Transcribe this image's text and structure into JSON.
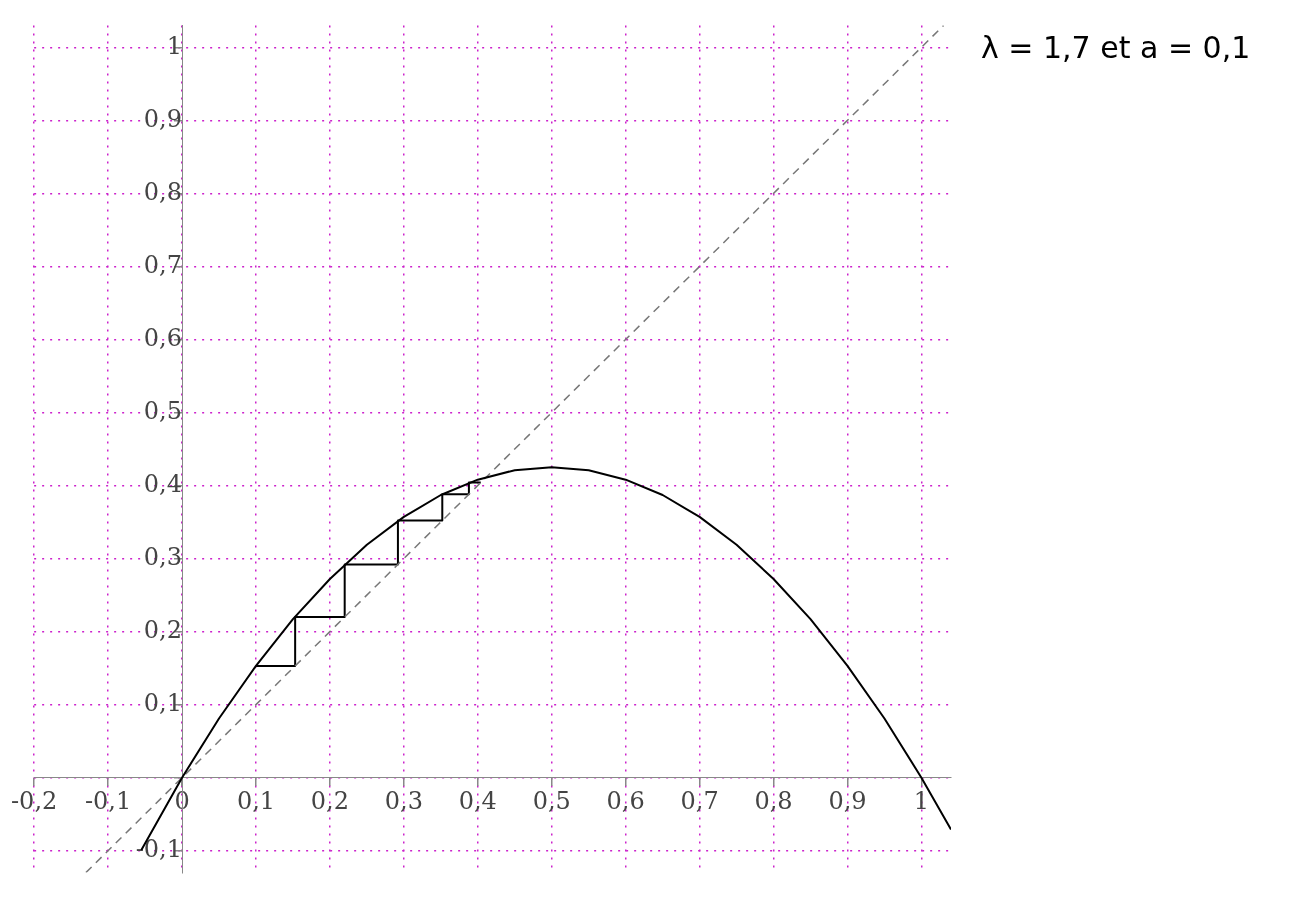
{
  "chart_data": {
    "type": "line",
    "annotations": [
      "λ = 1,7 et a = 0,1"
    ],
    "xlim": [
      -0.2,
      1.04
    ],
    "ylim": [
      -0.13,
      1.03
    ],
    "xticks": [
      {
        "value": -0.2,
        "label": "-0,2"
      },
      {
        "value": -0.1,
        "label": "-0,1"
      },
      {
        "value": 0,
        "label": "0"
      },
      {
        "value": 0.1,
        "label": "0,1"
      },
      {
        "value": 0.2,
        "label": "0,2"
      },
      {
        "value": 0.3,
        "label": "0,3"
      },
      {
        "value": 0.4,
        "label": "0,4"
      },
      {
        "value": 0.5,
        "label": "0,5"
      },
      {
        "value": 0.6,
        "label": "0,6"
      },
      {
        "value": 0.7,
        "label": "0,7"
      },
      {
        "value": 0.8,
        "label": "0,8"
      },
      {
        "value": 0.9,
        "label": "0,9"
      },
      1
    ],
    "yticks": [
      {
        "value": -0.1,
        "label": "-0,1"
      },
      {
        "value": 0,
        "label": null
      },
      {
        "value": 0.1,
        "label": "0,1"
      },
      {
        "value": 0.2,
        "label": "0,2"
      },
      {
        "value": 0.3,
        "label": "0,3"
      },
      {
        "value": 0.4,
        "label": "0,4"
      },
      {
        "value": 0.5,
        "label": "0,5"
      },
      {
        "value": 0.6,
        "label": "0,6"
      },
      {
        "value": 0.7,
        "label": "0,7"
      },
      {
        "value": 0.8,
        "label": "0,8"
      },
      {
        "value": 0.9,
        "label": "0,9"
      },
      1
    ],
    "grid": true,
    "legend": false,
    "marker": "none",
    "series": [
      {
        "color": "#000000",
        "line_style": "solid",
        "x": [
          -0.055,
          0,
          0.05,
          0.1,
          0.15,
          0.2,
          0.25,
          0.3,
          0.35,
          0.4,
          0.45,
          0.5,
          0.55,
          0.6,
          0.65,
          0.7,
          0.75,
          0.8,
          0.85,
          0.9,
          0.95,
          1,
          1.04
        ],
        "values": [
          -0.099,
          0,
          0.081,
          0.153,
          0.217,
          0.272,
          0.319,
          0.357,
          0.387,
          0.408,
          0.421,
          0.425,
          0.421,
          0.408,
          0.387,
          0.357,
          0.319,
          0.272,
          0.217,
          0.153,
          0.081,
          0,
          -0.071
        ]
      },
      {
        "color": "#777777",
        "line_style": "dashed",
        "x": [
          -0.13,
          1.03
        ],
        "values": [
          -0.13,
          1.03
        ]
      },
      {
        "color": "#000000",
        "line_style": "solid",
        "x": [
          0.1,
          0.153,
          0.153,
          0.22,
          0.22,
          0.292,
          0.292,
          0.352,
          0.352,
          0.388,
          0.388,
          0.404
        ],
        "values": [
          0.153,
          0.153,
          0.22,
          0.22,
          0.292,
          0.292,
          0.352,
          0.352,
          0.388,
          0.388,
          0.404,
          0.404
        ]
      }
    ]
  }
}
